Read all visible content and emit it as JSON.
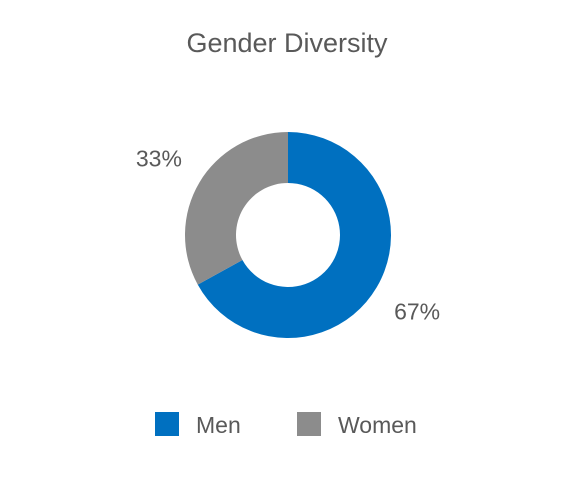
{
  "chart_data": {
    "type": "pie",
    "variant": "donut",
    "title": "Gender Diversity",
    "categories": [
      "Men",
      "Women"
    ],
    "values": [
      67,
      33
    ],
    "value_labels": [
      "67%",
      "33%"
    ],
    "colors": [
      "#0070C0",
      "#8C8C8C"
    ],
    "legend": {
      "position": "bottom",
      "entries": [
        "Men",
        "Women"
      ]
    }
  }
}
